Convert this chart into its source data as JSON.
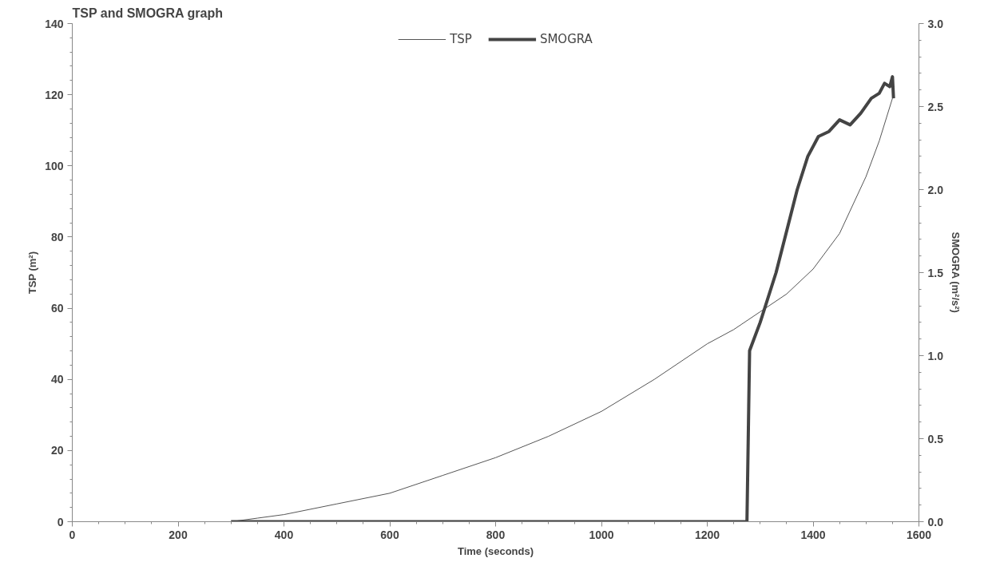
{
  "chart_data": {
    "type": "line",
    "title": "TSP and SMOGRA graph",
    "xlabel": "Time (seconds)",
    "ylabel": "TSP (m²)",
    "y2label": "SMOGRA (m²/s²)",
    "xlim": [
      0,
      1600
    ],
    "xticks": [
      0,
      200,
      400,
      600,
      800,
      1000,
      1200,
      1400,
      1600
    ],
    "ylim": [
      0,
      140
    ],
    "yticks": [
      0,
      20,
      40,
      60,
      80,
      100,
      120,
      140
    ],
    "y2lim": [
      0,
      3.0
    ],
    "y2ticks": [
      {
        "value": 0,
        "label": "0.0"
      },
      0.5,
      {
        "value": 1,
        "label": "1.0"
      },
      1.5,
      {
        "value": 2,
        "label": "2.0"
      },
      2.5,
      {
        "value": 3,
        "label": "3.0"
      }
    ],
    "grid": false,
    "legend": "top",
    "marker": "none",
    "line_style": "solid",
    "series": [
      {
        "name": "TSP",
        "color": "#555555",
        "x": [
          300,
          350,
          400,
          500,
          600,
          700,
          800,
          900,
          1000,
          1100,
          1200,
          1250,
          1300,
          1350,
          1400,
          1450,
          1500,
          1525,
          1550
        ],
        "values": [
          0,
          1,
          2,
          5,
          8,
          13,
          18,
          24,
          31,
          40,
          50,
          54,
          59,
          64,
          71,
          81,
          97,
          107,
          119
        ]
      },
      {
        "name": "SMOGRA",
        "color": "#444444",
        "axis": "y2",
        "x": [
          300,
          1275,
          1280,
          1300,
          1330,
          1350,
          1370,
          1390,
          1410,
          1430,
          1450,
          1470,
          1490,
          1510,
          1525,
          1535,
          1545,
          1550,
          1552
        ],
        "values": [
          0,
          0,
          1.03,
          1.2,
          1.5,
          1.75,
          2.0,
          2.2,
          2.32,
          2.35,
          2.42,
          2.39,
          2.46,
          2.55,
          2.58,
          2.64,
          2.62,
          2.68,
          2.55
        ]
      }
    ]
  }
}
